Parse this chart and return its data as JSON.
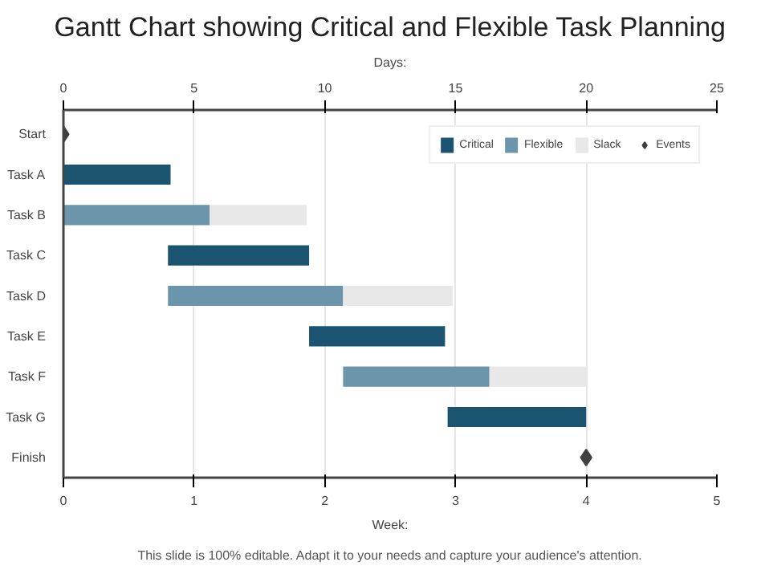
{
  "chart_data": {
    "type": "bar",
    "orientation": "horizontal",
    "title": "Gantt Chart showing Critical and Flexible Task Planning",
    "xlabel": "Days:",
    "x2label": "Week:",
    "categories": [
      "Start",
      "Task A",
      "Task B",
      "Task C",
      "Task D",
      "Task E",
      "Task F",
      "Task G",
      "Finish"
    ],
    "series": [
      {
        "name": "Critical",
        "color": "#1a5470",
        "base": [
          null,
          0,
          null,
          4.0,
          null,
          9.4,
          null,
          14.7,
          null
        ],
        "values": [
          null,
          4.1,
          null,
          5.4,
          null,
          5.2,
          null,
          5.3,
          null
        ]
      },
      {
        "name": "Flexible",
        "color": "#6a95aa",
        "base": [
          null,
          null,
          0,
          null,
          4.0,
          null,
          10.7,
          null,
          null
        ],
        "values": [
          null,
          null,
          5.6,
          null,
          6.7,
          null,
          5.6,
          null,
          null
        ]
      },
      {
        "name": "Slack",
        "color": "#e8e8e8",
        "base": [
          null,
          null,
          5.6,
          null,
          10.7,
          null,
          16.3,
          null,
          null
        ],
        "values": [
          null,
          null,
          3.7,
          null,
          4.2,
          null,
          3.7,
          null,
          null
        ]
      },
      {
        "name": "Events",
        "type": "scatter",
        "marker": "diamond",
        "color": "#404040",
        "values": [
          0,
          null,
          null,
          null,
          null,
          null,
          null,
          null,
          20
        ]
      }
    ],
    "xlim": [
      0,
      25
    ],
    "xticks": [
      0,
      5,
      10,
      15,
      20,
      25
    ],
    "x2lim": [
      0,
      5
    ],
    "x2ticks": [
      0,
      1,
      2,
      3,
      4,
      5
    ],
    "grid": "x",
    "legend": "top right",
    "annotations": [
      "This slide is 100% editable. Adapt it to your needs and capture your audience's attention."
    ]
  }
}
